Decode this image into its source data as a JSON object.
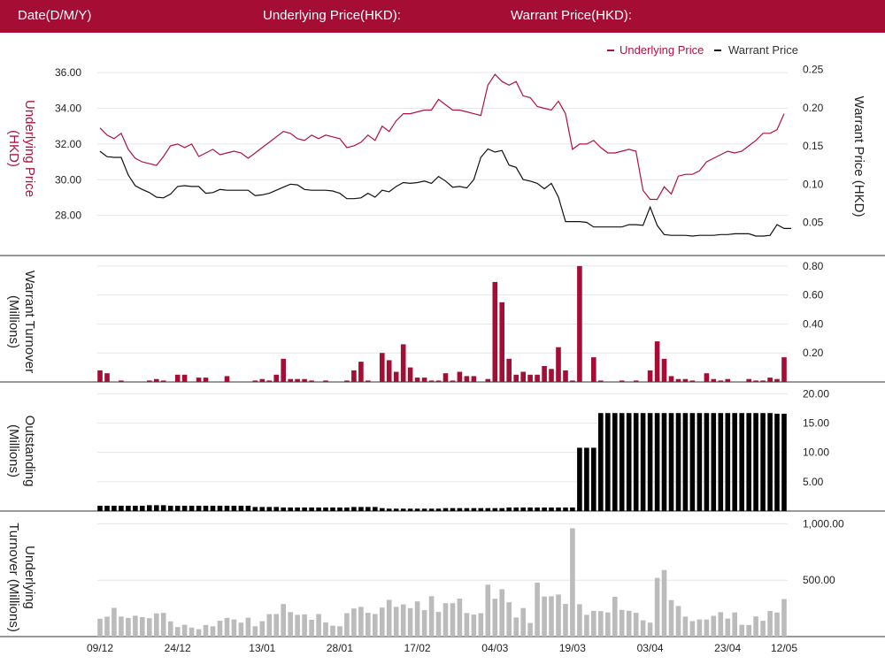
{
  "header": {
    "date_label": "Date(D/M/Y)",
    "underlying_label": "Underlying Price(HKD):",
    "warrant_label": "Warrant Price(HKD):"
  },
  "colors": {
    "brand": "#a50d34",
    "underlying": "#b0123f",
    "warrant": "#111111",
    "turnover": "#a50d34",
    "outstanding": "#000000",
    "underlying_turnover": "#bbbbbb",
    "grid": "#e6e6e6"
  },
  "chart_data": [
    {
      "type": "line",
      "legend": [
        "Underlying Price",
        "Warrant Price"
      ],
      "legend_position": "top-right",
      "ylabel_left": "Underlying Price (HKD)",
      "ylabel_right": "Warrant  Price (HKD)",
      "ylim_left": [
        26.2,
        36.6
      ],
      "yticks_left": [
        "28.00",
        "30.00",
        "32.00",
        "34.00",
        "36.00"
      ],
      "ylim_right": [
        0.017,
        0.26
      ],
      "yticks_right": [
        "0.05",
        "0.10",
        "0.15",
        "0.20",
        "0.25"
      ],
      "grid": true,
      "series": [
        {
          "name": "Underlying Price",
          "axis": "left",
          "values": [
            32.9,
            32.5,
            32.3,
            32.6,
            31.7,
            31.2,
            31.0,
            30.9,
            30.8,
            31.3,
            31.9,
            32.0,
            31.8,
            32.0,
            31.3,
            31.5,
            31.7,
            31.4,
            31.5,
            31.6,
            31.5,
            31.2,
            31.5,
            31.8,
            32.1,
            32.4,
            32.7,
            32.6,
            32.3,
            32.2,
            32.5,
            32.3,
            32.5,
            32.4,
            32.3,
            31.8,
            31.9,
            32.1,
            32.5,
            32.2,
            33.0,
            32.7,
            33.3,
            33.7,
            33.7,
            33.8,
            33.9,
            33.9,
            34.5,
            34.2,
            33.9,
            33.9,
            33.8,
            33.7,
            33.6,
            35.3,
            35.9,
            35.5,
            35.3,
            35.5,
            34.7,
            34.6,
            34.1,
            34.0,
            33.9,
            34.4,
            33.7,
            31.7,
            32.0,
            32.0,
            32.2,
            31.8,
            31.5,
            31.5,
            31.6,
            31.7,
            31.6,
            29.4,
            28.9,
            28.9,
            29.6,
            29.2,
            30.2,
            30.3,
            30.3,
            30.5,
            31.0,
            31.2,
            31.4,
            31.6,
            31.5,
            31.6,
            31.9,
            32.2,
            32.6,
            32.6,
            32.8,
            33.7
          ]
        },
        {
          "name": "Warrant Price",
          "axis": "right",
          "values": [
            0.143,
            0.136,
            0.135,
            0.135,
            0.112,
            0.098,
            0.093,
            0.089,
            0.083,
            0.082,
            0.087,
            0.097,
            0.098,
            0.097,
            0.097,
            0.088,
            0.089,
            0.093,
            0.092,
            0.092,
            0.092,
            0.092,
            0.085,
            0.086,
            0.088,
            0.092,
            0.096,
            0.1,
            0.099,
            0.093,
            0.092,
            0.092,
            0.092,
            0.091,
            0.088,
            0.081,
            0.081,
            0.082,
            0.088,
            0.083,
            0.092,
            0.09,
            0.097,
            0.102,
            0.101,
            0.102,
            0.104,
            0.101,
            0.11,
            0.104,
            0.096,
            0.097,
            0.095,
            0.106,
            0.135,
            0.146,
            0.142,
            0.144,
            0.125,
            0.122,
            0.106,
            0.104,
            0.101,
            0.094,
            0.101,
            0.083,
            0.051,
            0.051,
            0.051,
            0.05,
            0.044,
            0.044,
            0.044,
            0.044,
            0.044,
            0.047,
            0.047,
            0.046,
            0.07,
            0.046,
            0.034,
            0.033,
            0.033,
            0.033,
            0.032,
            0.033,
            0.033,
            0.033,
            0.034,
            0.034,
            0.035,
            0.035,
            0.035,
            0.032,
            0.032,
            0.033,
            0.047,
            0.042,
            0.042
          ]
        }
      ]
    },
    {
      "type": "bar",
      "ylabel": "Warrant  Turnover (Millions)",
      "ylim": [
        0,
        0.83
      ],
      "yticks": [
        "0.20",
        "0.40",
        "0.60",
        "0.80"
      ],
      "values": [
        0.08,
        0.06,
        0.0,
        0.01,
        0.0,
        0.0,
        0.0,
        0.01,
        0.02,
        0.01,
        0.0,
        0.05,
        0.05,
        0.0,
        0.03,
        0.03,
        0.0,
        0.0,
        0.04,
        0.0,
        0.0,
        0.0,
        0.01,
        0.02,
        0.01,
        0.05,
        0.16,
        0.02,
        0.02,
        0.02,
        0.01,
        0.0,
        0.01,
        0.0,
        0.0,
        0.01,
        0.08,
        0.14,
        0.01,
        0.0,
        0.2,
        0.15,
        0.07,
        0.26,
        0.1,
        0.03,
        0.03,
        0.01,
        0.01,
        0.06,
        0.01,
        0.07,
        0.04,
        0.04,
        0.0,
        0.02,
        0.69,
        0.55,
        0.16,
        0.05,
        0.07,
        0.05,
        0.05,
        0.11,
        0.09,
        0.24,
        0.08,
        0.01,
        0.8,
        0.0,
        0.17,
        0.01,
        0.0,
        0.0,
        0.01,
        0.0,
        0.01,
        0.0,
        0.08,
        0.28,
        0.16,
        0.04,
        0.02,
        0.02,
        0.01,
        0.0,
        0.06,
        0.02,
        0.01,
        0.02,
        0.0,
        0.0,
        0.02,
        0.01,
        0.01,
        0.03,
        0.02,
        0.17
      ]
    },
    {
      "type": "bar",
      "ylabel": "Outstanding (Millions)",
      "ylim": [
        0,
        20.5
      ],
      "yticks": [
        "5.00",
        "10.00",
        "15.00",
        "20.00"
      ],
      "values": [
        0.9,
        0.9,
        0.9,
        0.9,
        0.9,
        0.9,
        0.9,
        1.0,
        1.0,
        1.0,
        0.9,
        0.9,
        0.9,
        0.9,
        0.9,
        0.9,
        0.9,
        0.9,
        0.9,
        0.9,
        0.9,
        0.9,
        0.7,
        0.7,
        0.7,
        0.7,
        0.6,
        0.6,
        0.6,
        0.6,
        0.6,
        0.6,
        0.6,
        0.6,
        0.6,
        0.6,
        0.7,
        0.7,
        0.7,
        0.7,
        0.5,
        0.4,
        0.4,
        0.4,
        0.4,
        0.4,
        0.4,
        0.4,
        0.4,
        0.5,
        0.5,
        0.5,
        0.5,
        0.5,
        0.5,
        0.5,
        0.5,
        0.5,
        0.6,
        0.6,
        0.6,
        0.6,
        0.6,
        0.6,
        0.6,
        0.6,
        0.6,
        0.6,
        10.8,
        10.8,
        10.8,
        16.7,
        16.7,
        16.7,
        16.7,
        16.7,
        16.7,
        16.7,
        16.7,
        16.7,
        16.7,
        16.7,
        16.7,
        16.7,
        16.7,
        16.7,
        16.7,
        16.7,
        16.7,
        16.7,
        16.7,
        16.7,
        16.7,
        16.7,
        16.7,
        16.7,
        16.6,
        16.6
      ]
    },
    {
      "type": "bar",
      "ylabel": "Underlying Turnover (Millions)",
      "ylim": [
        0,
        1050
      ],
      "yticks": [
        "500.00",
        "1,000.00"
      ],
      "xticks": [
        "09/12",
        "24/12",
        "13/01",
        "28/01",
        "17/02",
        "04/03",
        "19/03",
        "03/04",
        "23/04",
        "12/05"
      ],
      "values": [
        158,
        176,
        255,
        177,
        165,
        185,
        172,
        163,
        205,
        210,
        135,
        85,
        105,
        80,
        66,
        103,
        91,
        140,
        166,
        152,
        124,
        167,
        92,
        136,
        199,
        200,
        288,
        217,
        193,
        197,
        149,
        200,
        126,
        96,
        92,
        208,
        249,
        263,
        211,
        200,
        257,
        325,
        263,
        285,
        252,
        312,
        234,
        358,
        219,
        296,
        296,
        337,
        209,
        195,
        208,
        460,
        335,
        420,
        304,
        169,
        253,
        121,
        478,
        355,
        357,
        373,
        289,
        960,
        287,
        193,
        228,
        226,
        214,
        353,
        237,
        229,
        211,
        144,
        124,
        520,
        590,
        323,
        271,
        177,
        137,
        152,
        151,
        184,
        216,
        160,
        214,
        104,
        103,
        179,
        140,
        227,
        213,
        332
      ]
    }
  ]
}
